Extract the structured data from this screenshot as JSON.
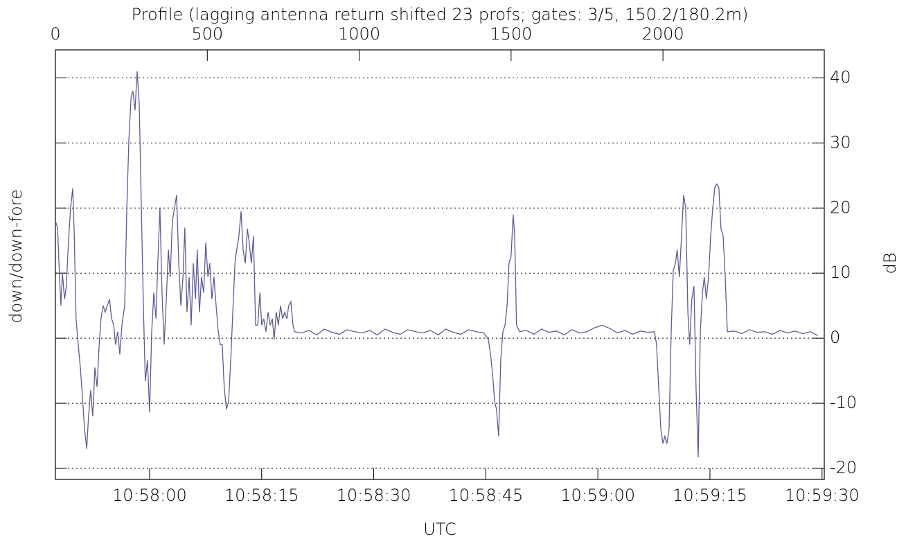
{
  "chart_data": {
    "type": "line",
    "title": "Profile (lagging antenna return shifted 23 profs; gates: 3/5, 150.2/180.2m)",
    "ylabel": "down/down-fore",
    "ylabel_right": "dB",
    "x2label": "UTC",
    "color": "#5b5b96",
    "grid": true,
    "xlim": [
      0,
      2531
    ],
    "xticks": [
      0,
      500,
      1000,
      1500,
      2000
    ],
    "x2lim": [
      39467.4,
      39570.3
    ],
    "x2ticks": [
      {
        "value": 39480,
        "label": "10:58:00"
      },
      {
        "value": 39495,
        "label": "10:58:15"
      },
      {
        "value": 39510,
        "label": "10:58:30"
      },
      {
        "value": 39525,
        "label": "10:58:45"
      },
      {
        "value": 39540,
        "label": "10:59:00"
      },
      {
        "value": 39555,
        "label": "10:59:15"
      },
      {
        "value": 39570,
        "label": "10:59:30"
      }
    ],
    "ylim": [
      -21.7,
      44.3
    ],
    "yticks": [
      -20,
      -10,
      0,
      10,
      20,
      30,
      40
    ],
    "x": [
      0,
      7,
      14,
      18,
      23,
      30,
      36,
      43,
      50,
      57,
      62,
      68,
      75,
      82,
      89,
      96,
      103,
      109,
      116,
      123,
      130,
      137,
      144,
      150,
      157,
      164,
      171,
      178,
      185,
      192,
      198,
      205,
      212,
      219,
      228,
      235,
      242,
      249,
      255,
      262,
      269,
      276,
      283,
      290,
      296,
      303,
      310,
      317,
      324,
      331,
      337,
      344,
      351,
      358,
      365,
      372,
      378,
      385,
      392,
      399,
      406,
      413,
      420,
      426,
      433,
      440,
      447,
      454,
      461,
      467,
      474,
      481,
      488,
      495,
      502,
      508,
      515,
      522,
      529,
      536,
      543,
      549,
      556,
      563,
      570,
      577,
      584,
      591,
      597,
      604,
      611,
      618,
      625,
      632,
      638,
      645,
      652,
      659,
      666,
      673,
      679,
      686,
      693,
      700,
      707,
      714,
      720,
      727,
      734,
      741,
      748,
      755,
      762,
      768,
      775,
      782,
      787,
      810,
      835,
      860,
      885,
      910,
      935,
      960,
      985,
      1010,
      1035,
      1060,
      1085,
      1110,
      1135,
      1160,
      1185,
      1210,
      1235,
      1260,
      1285,
      1310,
      1335,
      1360,
      1385,
      1410,
      1425,
      1432,
      1439,
      1446,
      1452,
      1459,
      1466,
      1473,
      1480,
      1487,
      1493,
      1500,
      1507,
      1512,
      1518,
      1528,
      1550,
      1575,
      1600,
      1625,
      1650,
      1675,
      1700,
      1725,
      1750,
      1775,
      1800,
      1825,
      1850,
      1875,
      1900,
      1925,
      1950,
      1972,
      1979,
      1986,
      1993,
      2000,
      2006,
      2013,
      2020,
      2027,
      2034,
      2041,
      2047,
      2054,
      2061,
      2068,
      2075,
      2082,
      2088,
      2095,
      2102,
      2109,
      2116,
      2123,
      2130,
      2136,
      2143,
      2150,
      2157,
      2164,
      2171,
      2177,
      2184,
      2191,
      2198,
      2205,
      2212,
      2235,
      2260,
      2285,
      2310,
      2335,
      2360,
      2385,
      2410,
      2435,
      2460,
      2485,
      2510
    ],
    "values": [
      18,
      17,
      9,
      5,
      10,
      6,
      8,
      15,
      20,
      23,
      16,
      3,
      -1,
      -4.5,
      -9,
      -14,
      -17,
      -12,
      -8,
      -12,
      -4.5,
      -7.5,
      -1,
      3,
      5,
      4,
      5,
      6,
      3,
      2,
      -1,
      1,
      -2.5,
      2,
      5,
      20,
      30.6,
      37,
      38,
      35,
      41,
      36,
      20,
      4,
      -6.6,
      -3.4,
      -11.4,
      1,
      7,
      3,
      11.5,
      20,
      7,
      -1,
      6,
      13.6,
      9.4,
      18,
      20,
      22,
      11.5,
      5,
      9.4,
      17,
      4,
      9.4,
      2,
      11.5,
      6,
      13.6,
      4,
      9.4,
      7,
      14.7,
      9.4,
      11.5,
      6,
      9.4,
      5,
      1,
      -1,
      -1,
      -7.7,
      -10.9,
      -9.8,
      -3.4,
      4,
      11.5,
      13.6,
      15.7,
      19.5,
      13.6,
      11.5,
      16.8,
      14.7,
      11.5,
      15.7,
      2,
      2,
      7,
      2,
      3,
      1,
      4,
      2,
      3,
      -0.2,
      4,
      2,
      5,
      3,
      4,
      3,
      5,
      5.6,
      2,
      1,
      0.8,
      1.2,
      0.5,
      1.4,
      0.9,
      0.6,
      1.3,
      1.0,
      0.8,
      1.2,
      0.5,
      1.4,
      0.9,
      0.6,
      1.3,
      1.0,
      0.8,
      1.2,
      0.5,
      1.4,
      0.9,
      0.6,
      1.3,
      1.0,
      0.8,
      -0.2,
      -2.3,
      -5.5,
      -9.8,
      -10.9,
      -15.1,
      -3.4,
      1,
      2,
      5,
      11.5,
      12.6,
      19,
      15.7,
      2,
      1,
      1.2,
      0.6,
      1.4,
      0.9,
      1.1,
      0.5,
      1.3,
      0.8,
      1.0,
      1.6,
      2,
      1.5,
      0.8,
      1.2,
      0.6,
      1.1,
      0.9,
      1,
      -1,
      -7.7,
      -14,
      -16.2,
      -15.1,
      -16.2,
      -14,
      1,
      10.4,
      11.5,
      13.6,
      9.4,
      15.7,
      22,
      20,
      4,
      -1,
      6,
      8,
      -7.7,
      -18.3,
      1,
      7,
      9.4,
      6,
      9.4,
      15.7,
      20,
      23.2,
      23.7,
      23.2,
      16.8,
      15.7,
      9.4,
      1,
      1.1,
      0.7,
      1.3,
      0.9,
      1.0,
      0.6,
      1.2,
      0.8,
      1.1,
      0.7,
      1.0,
      0.4
    ]
  }
}
